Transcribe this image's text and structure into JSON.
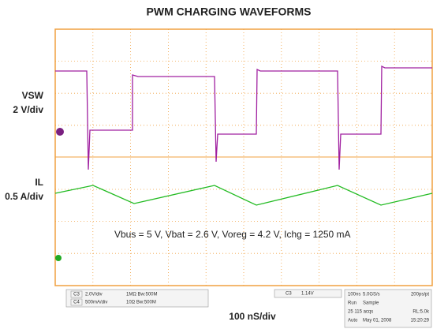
{
  "header": {
    "title": "PWM CHARGING WAVEFORMS"
  },
  "labels": {
    "vsw": "VSW",
    "vsw_scale": "2 V/div",
    "il": "IL",
    "il_scale": "0.5 A/div",
    "time_scale": "100 nS/div"
  },
  "annotation": "Vbus = 5 V, Vbat = 2.6 V, Voreg = 4.2 V, Ichg = 1250 mA",
  "status": {
    "ch3": [
      "C3",
      "2.0V/div",
      "1MΩ Bw:500M"
    ],
    "ch4": [
      "C4",
      "500mA/div",
      "10Ω Bw:500M"
    ],
    "trigger": [
      "C3",
      "1.14V"
    ],
    "acq": [
      [
        "100ns",
        "5.0GS/s",
        "200ps/pt"
      ],
      [
        "Run",
        "Sample",
        ""
      ],
      [
        "25 115 acqs",
        "",
        "RL:5.0k"
      ],
      [
        "Auto",
        "May 01, 2008",
        "15:20:29"
      ]
    ]
  }
}
